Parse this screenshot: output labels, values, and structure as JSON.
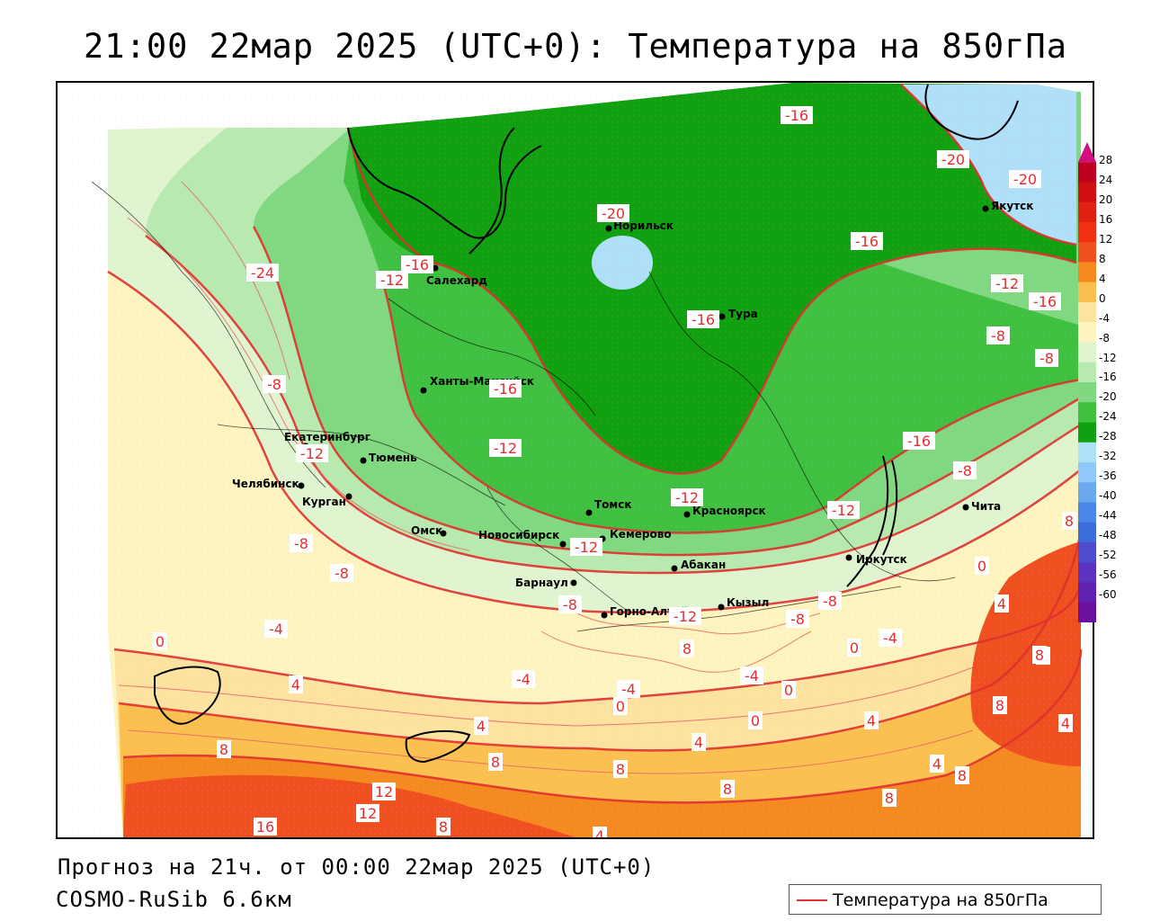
{
  "title": "21:00 22мар 2025 (UTC+0): Температура на 850гПа",
  "footer": {
    "forecast": "Прогноз на 21ч. от 00:00 22мар 2025 (UTC+0)",
    "model": "COSMO-RuSib 6.6км"
  },
  "legend": {
    "label": "Температура на 850гПа",
    "line_color": "#e03030"
  },
  "colorbar": {
    "labels": [
      "28",
      "24",
      "20",
      "16",
      "12",
      "8",
      "4",
      "0",
      "-4",
      "-8",
      "-12",
      "-16",
      "-20",
      "-24",
      "-28",
      "-32",
      "-36",
      "-40",
      "-44",
      "-48",
      "-52",
      "-56",
      "-60"
    ],
    "colors": [
      "#c00020",
      "#d01010",
      "#e02010",
      "#f03010",
      "#f05020",
      "#f58a20",
      "#fbc050",
      "#fde2a0",
      "#fdf4c0",
      "#e0f4d0",
      "#b8eab0",
      "#80d880",
      "#40c040",
      "#10a010",
      "#b0e0f8",
      "#90c8f8",
      "#6aa8f0",
      "#4a88e8",
      "#3c6cd8",
      "#4e4ccc",
      "#5a34c0",
      "#6020b0",
      "#6a10a0"
    ]
  },
  "cities": [
    {
      "name": "Норильск"
    },
    {
      "name": "Якутск"
    },
    {
      "name": "Салехард"
    },
    {
      "name": "Тура"
    },
    {
      "name": "Ханты-Мансийск"
    },
    {
      "name": "Екатеринбург"
    },
    {
      "name": "Тюмень"
    },
    {
      "name": "Челябинск"
    },
    {
      "name": "Курган"
    },
    {
      "name": "Омск"
    },
    {
      "name": "Новосибирск"
    },
    {
      "name": "Томск"
    },
    {
      "name": "Кемерово"
    },
    {
      "name": "Красноярск"
    },
    {
      "name": "Абакан"
    },
    {
      "name": "Барнаул"
    },
    {
      "name": "Горно-Алтайск"
    },
    {
      "name": "Кызыл"
    },
    {
      "name": "Иркутск"
    },
    {
      "name": "Чита"
    }
  ],
  "isotherm_labels": [
    "-16",
    "-20",
    "-20",
    "-20",
    "-16",
    "-16",
    "-12",
    "-16",
    "-16",
    "-24",
    "-12",
    "-8",
    "-8",
    "-16",
    "-12",
    "-12",
    "-16",
    "-12",
    "-12",
    "-8",
    "-8",
    "-8",
    "-12",
    "-8",
    "-12",
    "-8",
    "-8",
    "0",
    "-4",
    "0",
    "4",
    "0",
    "-4",
    "-4",
    "-4",
    "-4",
    "-8",
    "0",
    "0",
    "8",
    "0",
    "4",
    "8",
    "4",
    "8",
    "8",
    "4",
    "8",
    "4",
    "4",
    "8",
    "8",
    "12",
    "12",
    "16",
    "8",
    "4",
    "8",
    "8",
    "8",
    "4",
    "8"
  ]
}
